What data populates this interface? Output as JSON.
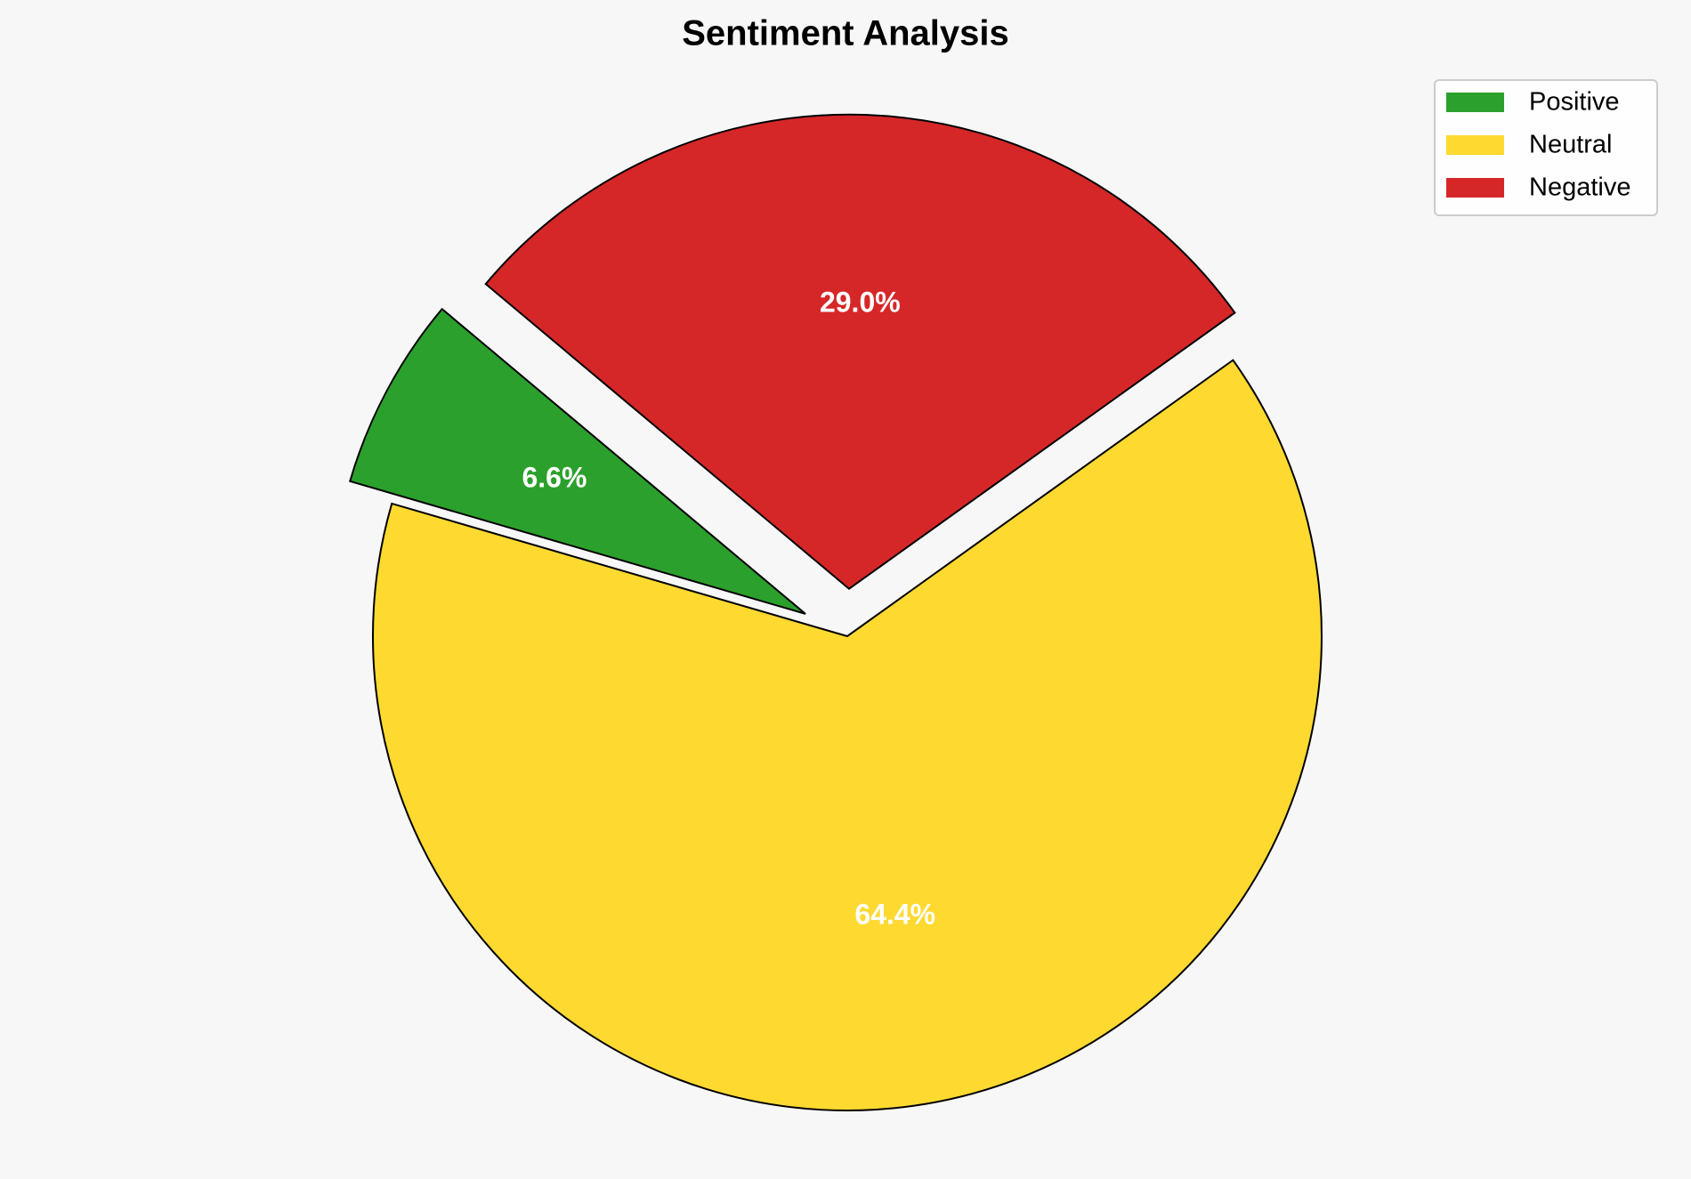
{
  "chart_data": {
    "type": "pie",
    "title": "Sentiment Analysis",
    "categories": [
      "Positive",
      "Neutral",
      "Negative"
    ],
    "values": [
      6.6,
      64.4,
      29.0
    ],
    "value_labels": [
      "6.6%",
      "64.4%",
      "29.0%"
    ],
    "colors": [
      "#2ca02c",
      "#fed930",
      "#d62728"
    ],
    "legend": "upper right"
  }
}
